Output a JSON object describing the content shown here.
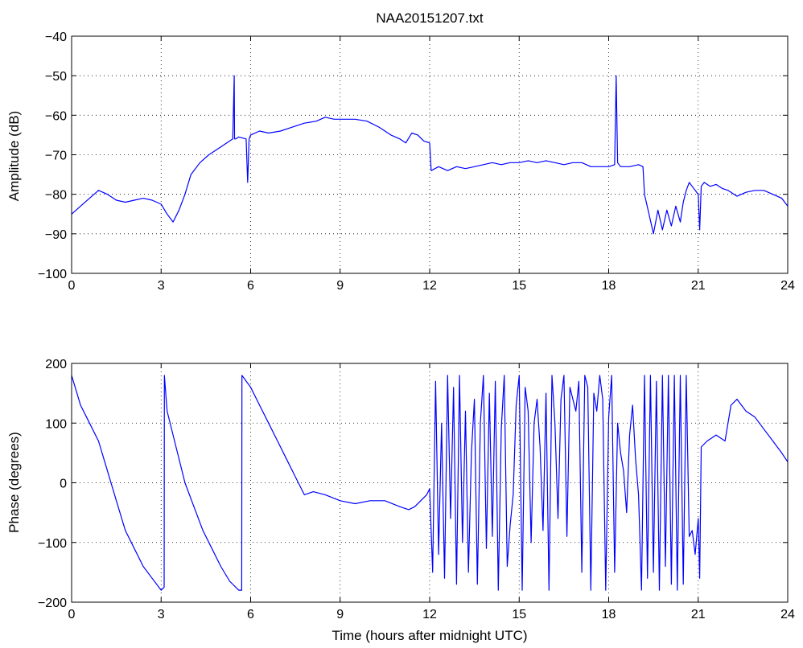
{
  "chart_data": [
    {
      "type": "line",
      "title": "NAA20151207.txt",
      "xlabel": "",
      "ylabel": "Amplitude (dB)",
      "xlim": [
        0,
        24
      ],
      "ylim": [
        -100,
        -40
      ],
      "xticks": [
        0,
        3,
        6,
        9,
        12,
        15,
        18,
        21,
        24
      ],
      "yticks": [
        -100,
        -90,
        -80,
        -70,
        -60,
        -50,
        -40
      ],
      "grid": true,
      "color": "#0000ff",
      "x": [
        0,
        0.3,
        0.6,
        0.9,
        1.2,
        1.5,
        1.8,
        2.1,
        2.4,
        2.7,
        3.0,
        3.2,
        3.4,
        3.6,
        3.8,
        4.0,
        4.3,
        4.6,
        5.0,
        5.4,
        5.45,
        5.46,
        5.5,
        5.6,
        5.85,
        5.9,
        5.95,
        6.0,
        6.3,
        6.6,
        7.0,
        7.4,
        7.8,
        8.2,
        8.5,
        8.8,
        9.1,
        9.5,
        9.9,
        10.3,
        10.7,
        11.0,
        11.2,
        11.4,
        11.6,
        11.8,
        12.0,
        12.05,
        12.3,
        12.6,
        12.9,
        13.2,
        13.5,
        13.8,
        14.1,
        14.4,
        14.7,
        15.0,
        15.3,
        15.6,
        15.9,
        16.2,
        16.5,
        16.8,
        17.1,
        17.4,
        17.7,
        18.0,
        18.2,
        18.25,
        18.3,
        18.4,
        18.7,
        19.0,
        19.15,
        19.2,
        19.35,
        19.5,
        19.65,
        19.8,
        19.95,
        20.1,
        20.25,
        20.4,
        20.5,
        20.6,
        20.7,
        20.8,
        20.9,
        21.0,
        21.05,
        21.1,
        21.2,
        21.4,
        21.6,
        21.8,
        22.0,
        22.3,
        22.6,
        22.9,
        23.2,
        23.5,
        23.8,
        24.0
      ],
      "y": [
        -85,
        -83,
        -81,
        -79,
        -80,
        -81.5,
        -82,
        -81.5,
        -81,
        -81.5,
        -82.5,
        -85,
        -87,
        -84,
        -80,
        -75,
        -72,
        -70,
        -68,
        -66,
        -50,
        -66,
        -66,
        -65.5,
        -66,
        -77,
        -66,
        -65,
        -64,
        -64.5,
        -64,
        -63,
        -62,
        -61.5,
        -60.5,
        -61,
        -61,
        -61,
        -61.5,
        -63,
        -65,
        -66,
        -67,
        -64.5,
        -65,
        -66.5,
        -67,
        -74,
        -73,
        -74,
        -73,
        -73.5,
        -73,
        -72.5,
        -72,
        -72.5,
        -72,
        -72,
        -71.5,
        -72,
        -71.5,
        -72,
        -72.5,
        -72,
        -72,
        -73,
        -73,
        -73,
        -72.5,
        -50,
        -72,
        -73,
        -73,
        -72.5,
        -73,
        -80,
        -85,
        -90,
        -84,
        -89,
        -84,
        -88,
        -83,
        -87,
        -82,
        -79,
        -77,
        -78,
        -79,
        -80,
        -89,
        -78,
        -77,
        -78,
        -77.5,
        -78.5,
        -79,
        -80.5,
        -79.5,
        -79,
        -79,
        -80,
        -81,
        -83
      ]
    },
    {
      "type": "line",
      "title": "",
      "xlabel": "Time (hours after midnight UTC)",
      "ylabel": "Phase (degrees)",
      "xlim": [
        0,
        24
      ],
      "ylim": [
        -200,
        200
      ],
      "xticks": [
        0,
        3,
        6,
        9,
        12,
        15,
        18,
        21,
        24
      ],
      "yticks": [
        -200,
        -100,
        0,
        100,
        200
      ],
      "grid": true,
      "color": "#0000ff",
      "x": [
        0,
        0.3,
        0.6,
        0.9,
        1.2,
        1.5,
        1.8,
        2.1,
        2.4,
        2.7,
        3.0,
        3.1,
        3.11,
        3.2,
        3.5,
        3.8,
        4.1,
        4.4,
        4.7,
        5.0,
        5.3,
        5.6,
        5.7,
        5.71,
        6.0,
        6.3,
        6.6,
        6.9,
        7.2,
        7.5,
        7.8,
        8.1,
        8.5,
        9.0,
        9.5,
        10.0,
        10.5,
        11.0,
        11.3,
        11.5,
        11.7,
        11.9,
        12.0,
        12.1,
        12.2,
        12.3,
        12.4,
        12.5,
        12.6,
        12.7,
        12.8,
        12.9,
        13.0,
        13.1,
        13.2,
        13.3,
        13.4,
        13.5,
        13.6,
        13.7,
        13.8,
        13.9,
        14.0,
        14.1,
        14.2,
        14.3,
        14.4,
        14.5,
        14.6,
        14.7,
        14.8,
        14.9,
        15.0,
        15.1,
        15.2,
        15.3,
        15.4,
        15.5,
        15.6,
        15.7,
        15.8,
        15.9,
        16.0,
        16.1,
        16.2,
        16.3,
        16.4,
        16.5,
        16.6,
        16.7,
        16.8,
        16.9,
        17.0,
        17.1,
        17.2,
        17.3,
        17.4,
        17.5,
        17.6,
        17.7,
        17.8,
        17.9,
        18.0,
        18.1,
        18.2,
        18.3,
        18.4,
        18.5,
        18.6,
        18.7,
        18.8,
        18.9,
        19.0,
        19.1,
        19.2,
        19.3,
        19.4,
        19.5,
        19.6,
        19.7,
        19.8,
        19.9,
        20.0,
        20.1,
        20.2,
        20.3,
        20.4,
        20.5,
        20.6,
        20.7,
        20.8,
        20.9,
        21.0,
        21.05,
        21.1,
        21.3,
        21.6,
        21.9,
        22.1,
        22.3,
        22.6,
        22.9,
        23.2,
        23.5,
        23.8,
        24.0
      ],
      "y": [
        180,
        130,
        100,
        70,
        20,
        -30,
        -80,
        -110,
        -140,
        -160,
        -180,
        -175,
        180,
        120,
        60,
        0,
        -40,
        -80,
        -110,
        -140,
        -165,
        -180,
        -180,
        180,
        160,
        130,
        100,
        70,
        40,
        10,
        -20,
        -15,
        -20,
        -30,
        -35,
        -30,
        -30,
        -40,
        -45,
        -40,
        -30,
        -20,
        -10,
        -150,
        170,
        -120,
        100,
        -160,
        180,
        -60,
        160,
        -170,
        180,
        -100,
        120,
        -150,
        50,
        140,
        -170,
        100,
        180,
        -110,
        150,
        -90,
        170,
        -180,
        90,
        180,
        -140,
        -70,
        -20,
        130,
        180,
        -180,
        160,
        120,
        -100,
        100,
        140,
        60,
        -80,
        150,
        -180,
        180,
        100,
        -60,
        140,
        180,
        -90,
        160,
        140,
        120,
        170,
        -150,
        180,
        160,
        -180,
        150,
        120,
        180,
        140,
        -180,
        110,
        180,
        -150,
        100,
        50,
        20,
        -50,
        80,
        130,
        40,
        -20,
        -180,
        180,
        -160,
        180,
        -150,
        170,
        -180,
        180,
        -140,
        180,
        -170,
        180,
        -180,
        180,
        -170,
        180,
        -90,
        -80,
        -120,
        -60,
        -160,
        60,
        70,
        80,
        70,
        130,
        140,
        120,
        110,
        90,
        70,
        50,
        35
      ]
    }
  ]
}
